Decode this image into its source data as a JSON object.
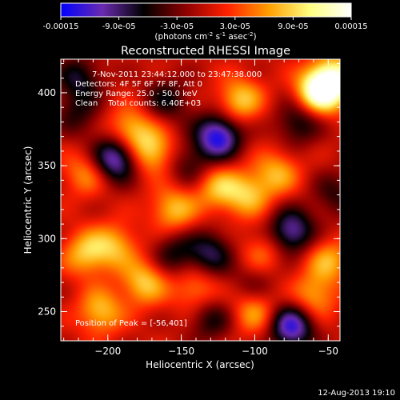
{
  "chart_data": {
    "type": "heatmap",
    "title": "Reconstructed RHESSI Image",
    "xlabel": "Heliocentric X (arcsec)",
    "ylabel": "Heliocentric Y (arcsec)",
    "xlim": [
      -232,
      -42
    ],
    "ylim": [
      230,
      423
    ],
    "xticks": [
      -200,
      -150,
      -100,
      -50
    ],
    "xtick_labels": [
      "−200",
      "−150",
      "−100",
      "−50"
    ],
    "yticks": [
      250,
      300,
      350,
      400
    ],
    "ytick_labels": [
      "250",
      "300",
      "350",
      "400"
    ],
    "colorbar": {
      "min": -0.00015,
      "max": 0.00015,
      "tick_labels": [
        "-0.00015",
        "-9.0e-05",
        "-3.0e-05",
        "3.0e-05",
        "9.0e-05",
        "0.00015"
      ],
      "unit_parts": [
        "(photons cm",
        "-2",
        " s",
        "-1",
        " asec",
        "-2",
        ")"
      ],
      "colors": [
        "#0000ff",
        "#6a2bb0",
        "#000000",
        "#8b0000",
        "#ff2000",
        "#ff9d00",
        "#ffff80",
        "#ffffff"
      ]
    },
    "annotations": [
      "7-Nov-2011 23:44:12.000 to 23:47:38.000",
      "Detectors: 4F 5F 6F 7F 8F, Att 0",
      "Energy Range: 25.0 - 50.0 keV",
      "Clean    Total counts: 6.40E+03"
    ],
    "peak_label": "Position of Peak = [-56,401]",
    "peak": [
      -56,
      401
    ],
    "sources": [
      {
        "x": -56,
        "y": 401,
        "v": 0.00015
      },
      {
        "x": -45,
        "y": 410,
        "v": 0.00011
      },
      {
        "x": -110,
        "y": 395,
        "v": 8.5e-05
      },
      {
        "x": -60,
        "y": 260,
        "v": 7e-05
      },
      {
        "x": -100,
        "y": 250,
        "v": 7e-05
      },
      {
        "x": -125,
        "y": 335,
        "v": 7.5e-05
      },
      {
        "x": -105,
        "y": 330,
        "v": 7.5e-05
      },
      {
        "x": -85,
        "y": 345,
        "v": 7e-05
      },
      {
        "x": -170,
        "y": 360,
        "v": 9e-05
      },
      {
        "x": -185,
        "y": 375,
        "v": 8e-05
      },
      {
        "x": -155,
        "y": 320,
        "v": 8e-05
      },
      {
        "x": -215,
        "y": 290,
        "v": 8e-05
      },
      {
        "x": -195,
        "y": 295,
        "v": 7e-05
      },
      {
        "x": -205,
        "y": 250,
        "v": 8e-05
      },
      {
        "x": -175,
        "y": 270,
        "v": 8.5e-05
      },
      {
        "x": -140,
        "y": 265,
        "v": 6e-05
      },
      {
        "x": -215,
        "y": 345,
        "v": 6e-05
      },
      {
        "x": -50,
        "y": 285,
        "v": 7e-05
      },
      {
        "x": -95,
        "y": 290,
        "v": 5e-05
      },
      {
        "x": -70,
        "y": 380,
        "v": -7e-05
      },
      {
        "x": -125,
        "y": 370,
        "v": -0.00014
      },
      {
        "x": -195,
        "y": 355,
        "v": -0.00013
      },
      {
        "x": -75,
        "y": 240,
        "v": -0.00013
      },
      {
        "x": -75,
        "y": 305,
        "v": -0.00011
      },
      {
        "x": -160,
        "y": 395,
        "v": -6e-05
      },
      {
        "x": -145,
        "y": 350,
        "v": -5e-05
      },
      {
        "x": -130,
        "y": 290,
        "v": -8e-05
      },
      {
        "x": -155,
        "y": 290,
        "v": -6e-05
      },
      {
        "x": -220,
        "y": 410,
        "v": -7e-05
      },
      {
        "x": -130,
        "y": 245,
        "v": -6e-05
      },
      {
        "x": -100,
        "y": 270,
        "v": -4e-05
      },
      {
        "x": -45,
        "y": 330,
        "v": -5e-05
      },
      {
        "x": -220,
        "y": 385,
        "v": -5e-05
      }
    ]
  },
  "footer": {
    "date": "12-Aug-2013 19:10"
  }
}
